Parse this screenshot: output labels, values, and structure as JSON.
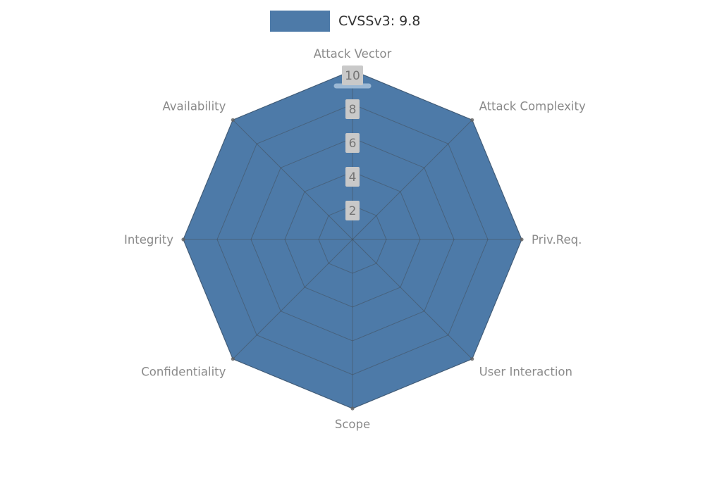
{
  "legend": {
    "label": "CVSSv3: 9.8",
    "swatch_color": "#4d7aa8"
  },
  "chart_data": {
    "type": "radar",
    "title": "",
    "categories": [
      "Attack Vector",
      "Attack Complexity",
      "Priv.Req.",
      "User Interaction",
      "Scope",
      "Confidentiality",
      "Integrity",
      "Availability"
    ],
    "series": [
      {
        "name": "CVSSv3: 9.8",
        "values": [
          10,
          10,
          10,
          10,
          10,
          10,
          10,
          10
        ],
        "fill_color": "#4d7aa8",
        "edge_color": "#466f99",
        "line_color": "#9bb8d4"
      }
    ],
    "ticks": [
      2,
      4,
      6,
      8,
      10
    ],
    "rlim": [
      0,
      10
    ],
    "grid": true,
    "legend_position": "top",
    "start_axis": "top",
    "direction": "clockwise"
  },
  "style": {
    "background": "#ffffff",
    "grid_color": "#3f3f3f",
    "grid_opacity": "0.4",
    "axis_label_color": "#8a8a8a",
    "tick_label_color": "#757575",
    "tick_box_color": "#c9c9c9",
    "vertex_dot_color": "#636363"
  }
}
